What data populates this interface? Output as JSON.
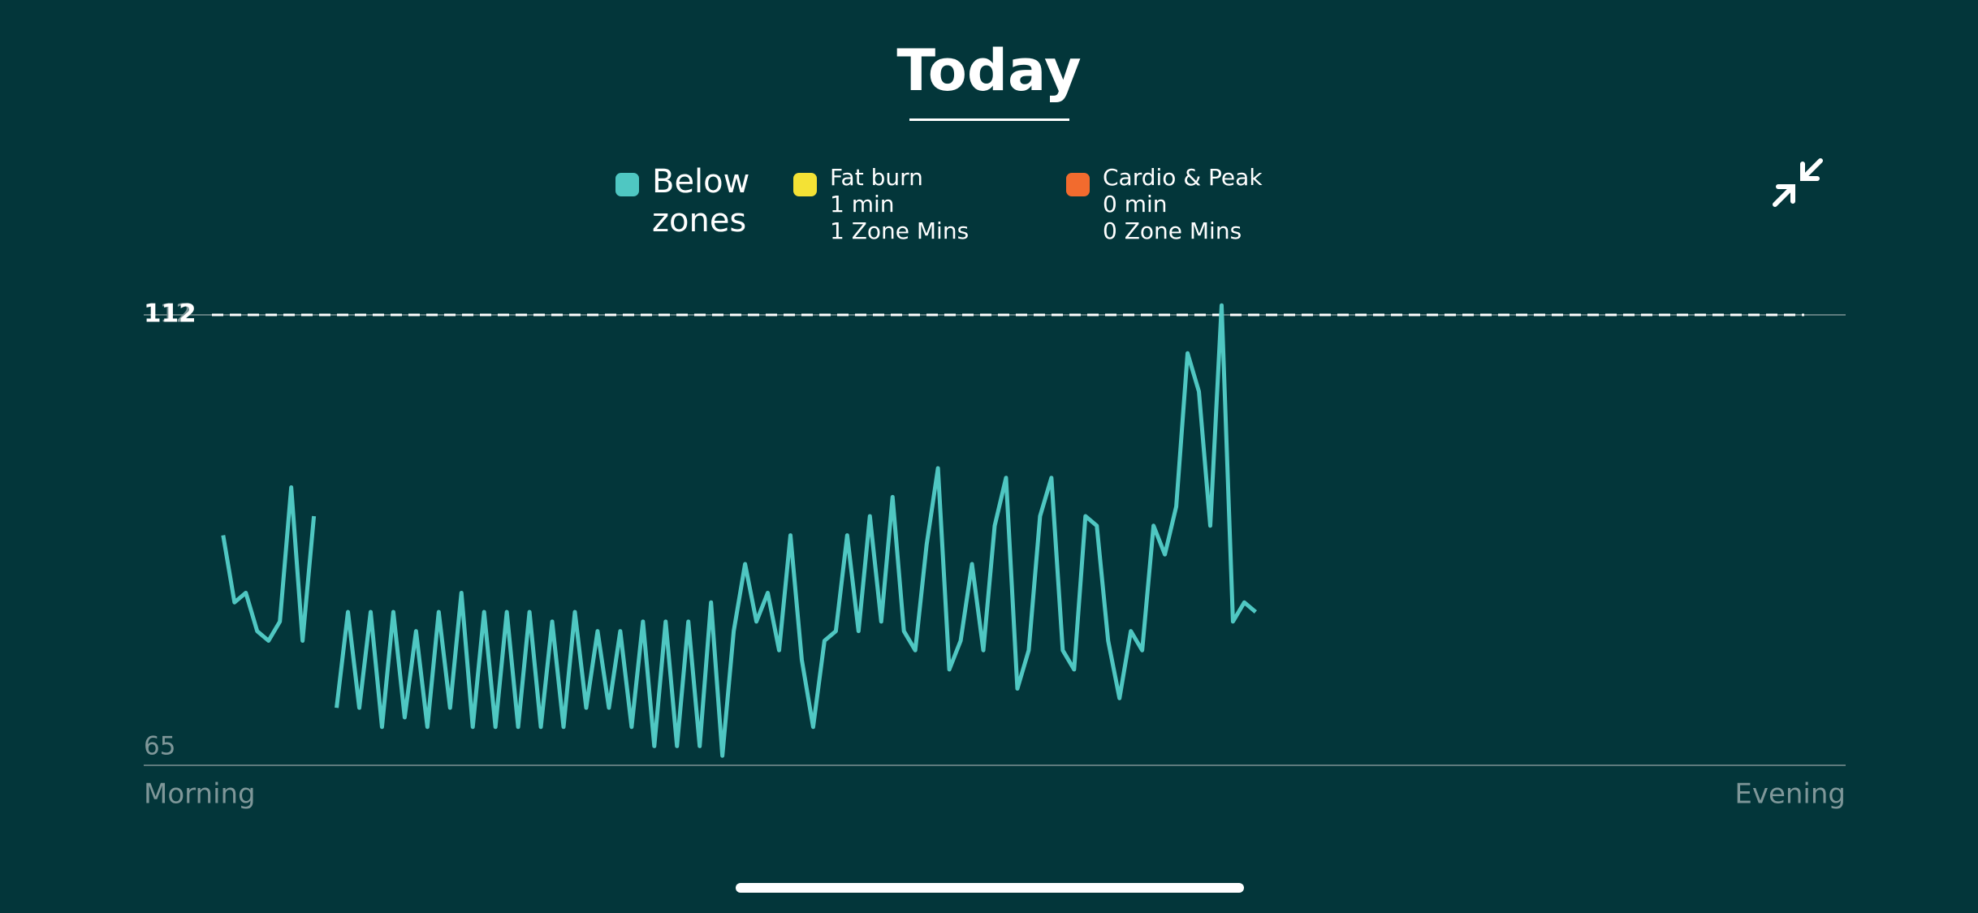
{
  "header": {
    "title": "Today"
  },
  "legend": [
    {
      "name": "Below zones",
      "color": "#4fc7c2"
    },
    {
      "name": "Fat burn",
      "color": "#f4e235",
      "details": [
        "1 min",
        "1 Zone Mins"
      ]
    },
    {
      "name": "Cardio & Peak",
      "color": "#f26b2e",
      "details": [
        "0 min",
        "0 Zone Mins"
      ]
    }
  ],
  "chart_data": {
    "type": "line",
    "categories": [
      "Morning",
      null,
      null,
      null,
      null,
      null,
      null,
      null,
      null,
      null,
      null,
      null,
      null,
      null,
      null,
      null,
      null,
      null,
      null,
      null,
      null,
      null,
      null,
      null,
      null,
      null,
      null,
      null,
      null,
      null,
      null,
      null,
      null,
      null,
      null,
      null,
      null,
      null,
      null,
      null,
      null,
      null,
      null,
      null,
      null,
      null,
      null,
      null,
      null,
      null,
      null,
      null,
      null,
      null,
      null,
      null,
      null,
      null,
      null,
      null,
      null,
      null,
      null,
      null,
      null,
      null,
      null,
      null,
      null,
      null,
      null,
      null,
      null,
      null,
      null,
      null,
      null,
      null,
      null,
      null,
      null,
      null,
      null,
      null,
      null,
      null,
      null,
      null,
      null,
      null,
      null,
      null,
      null,
      null,
      null,
      null,
      null,
      null,
      null,
      null,
      null,
      null,
      null,
      null,
      null,
      null,
      null,
      null,
      null,
      null,
      null,
      null,
      null,
      null,
      null,
      null,
      null,
      null,
      null,
      null,
      null,
      null,
      null,
      null,
      null,
      null,
      null,
      null,
      null,
      null,
      null,
      null,
      null,
      null,
      null,
      null,
      null,
      null,
      null,
      null,
      null,
      null,
      null,
      null,
      null,
      null,
      null,
      null,
      null,
      null,
      "Evening"
    ],
    "series": [
      {
        "name": "Below zones",
        "color": "#4fc7c2",
        "values": [
          null,
          null,
          null,
          null,
          null,
          null,
          null,
          89,
          82,
          83,
          79,
          78,
          80,
          94,
          78,
          91,
          null,
          71,
          81,
          71,
          81,
          69,
          81,
          70,
          79,
          69,
          81,
          71,
          83,
          69,
          81,
          69,
          81,
          69,
          81,
          69,
          80,
          69,
          81,
          71,
          79,
          71,
          79,
          69,
          80,
          67,
          80,
          67,
          80,
          67,
          82,
          66,
          79,
          86,
          80,
          83,
          77,
          89,
          76,
          69,
          78,
          79,
          89,
          79,
          91,
          80,
          93,
          79,
          77,
          88,
          96,
          75,
          78,
          86,
          77,
          90,
          95,
          73,
          77,
          91,
          95,
          77,
          75,
          91,
          90,
          78,
          72,
          79,
          77,
          90,
          87,
          92,
          108,
          104,
          90,
          113,
          80,
          82,
          81,
          null,
          null,
          null,
          null,
          null,
          null,
          null,
          null,
          null,
          null,
          null,
          null,
          null,
          null,
          null,
          null,
          null,
          null,
          null,
          null,
          null,
          null,
          null,
          null,
          null,
          null,
          null,
          null,
          null,
          null,
          null,
          null,
          null,
          null,
          null,
          null,
          null,
          null,
          null,
          null,
          null,
          null,
          null,
          null,
          null,
          null,
          null,
          null,
          null,
          null,
          null,
          null
        ]
      }
    ],
    "ylim": [
      65,
      112
    ],
    "yticks": [
      65,
      112
    ],
    "threshold": 112
  }
}
